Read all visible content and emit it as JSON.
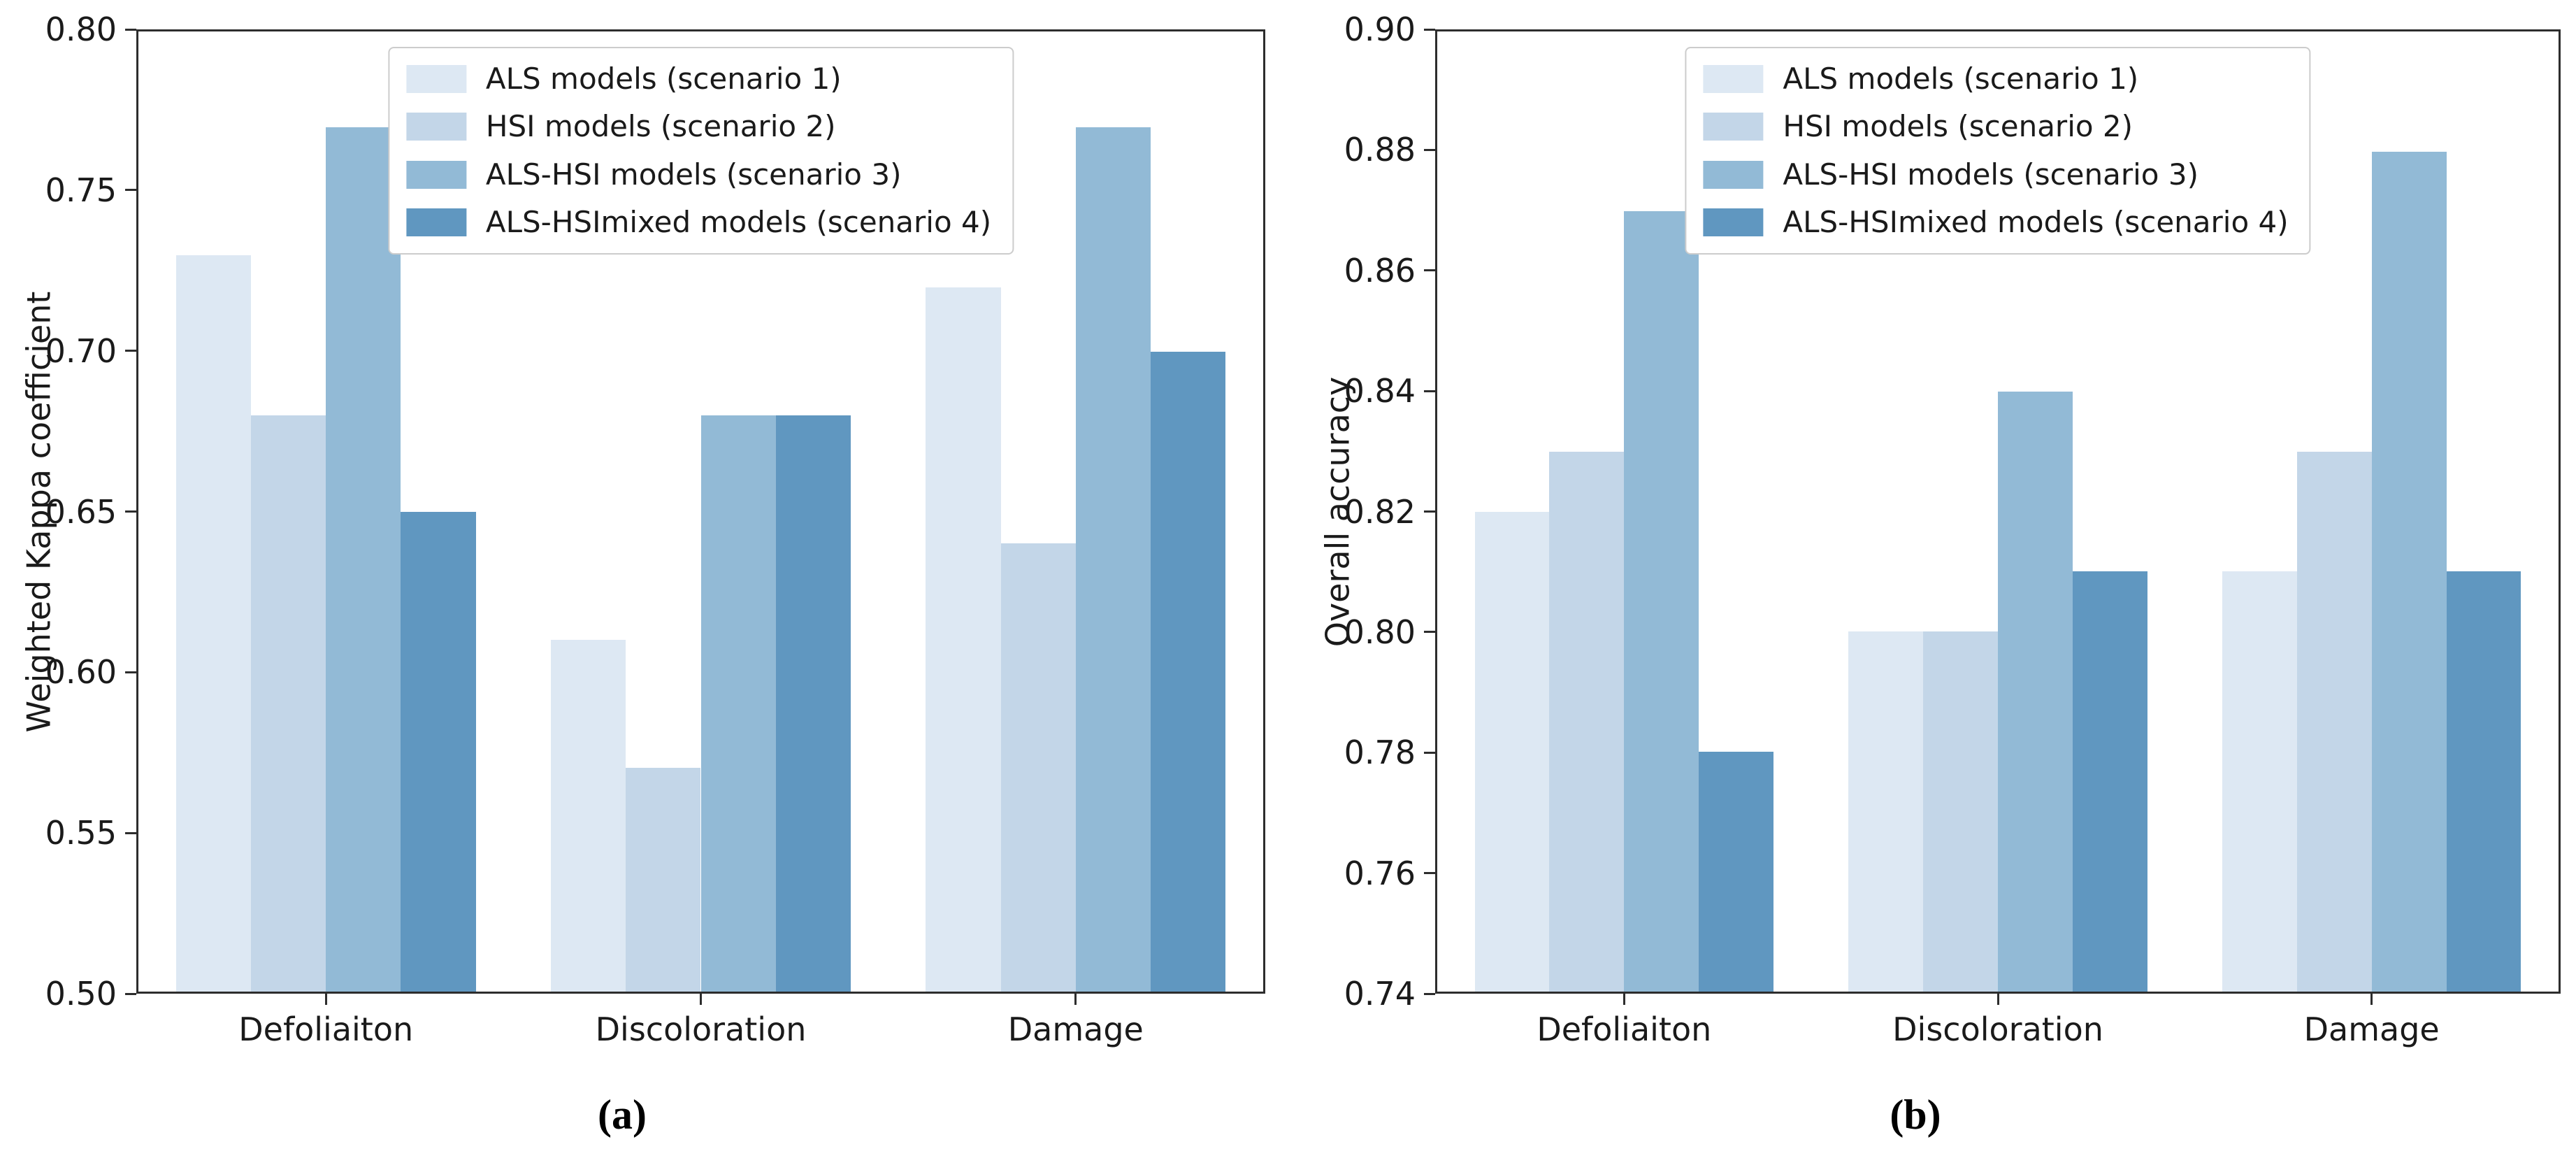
{
  "figure": {
    "background": "#ffffff",
    "axis_color": "#2d2d2d",
    "text_color": "#1a1a1a",
    "series_colors": [
      "#dde8f3",
      "#c3d6e8",
      "#92bad6",
      "#6097c0"
    ],
    "legend_border_color": "#cccccc"
  },
  "chart_data": [
    {
      "type": "bar",
      "panel_label": "(a)",
      "title": "",
      "xlabel": "",
      "ylabel": "Weighted Kappa coefficient",
      "categories": [
        "Defoliaiton",
        "Discoloration",
        "Damage"
      ],
      "series": [
        {
          "name": "ALS models (scenario 1)",
          "values": [
            0.73,
            0.61,
            0.72
          ]
        },
        {
          "name": "HSI models (scenario 2)",
          "values": [
            0.68,
            0.57,
            0.64
          ]
        },
        {
          "name": "ALS-HSI models (scenario 3)",
          "values": [
            0.77,
            0.68,
            0.77
          ]
        },
        {
          "name": "ALS-HSImixed models (scenario 4)",
          "values": [
            0.65,
            0.68,
            0.7
          ]
        }
      ],
      "ylim": [
        0.5,
        0.8
      ],
      "yticks": [
        0.5,
        0.55,
        0.6,
        0.65,
        0.7,
        0.75,
        0.8
      ],
      "ytick_labels": [
        "0.50",
        "0.55",
        "0.60",
        "0.65",
        "0.70",
        "0.75",
        "0.80"
      ],
      "legend_position": "upper center",
      "grid": false,
      "bar_group_width_fraction": 0.8
    },
    {
      "type": "bar",
      "panel_label": "(b)",
      "title": "",
      "xlabel": "",
      "ylabel": "Overall accuracy",
      "categories": [
        "Defoliaiton",
        "Discoloration",
        "Damage"
      ],
      "series": [
        {
          "name": "ALS models (scenario 1)",
          "values": [
            0.82,
            0.8,
            0.81
          ]
        },
        {
          "name": "HSI models (scenario 2)",
          "values": [
            0.83,
            0.8,
            0.83
          ]
        },
        {
          "name": "ALS-HSI models (scenario 3)",
          "values": [
            0.87,
            0.84,
            0.88
          ]
        },
        {
          "name": "ALS-HSImixed models (scenario 4)",
          "values": [
            0.78,
            0.81,
            0.81
          ]
        }
      ],
      "ylim": [
        0.74,
        0.9
      ],
      "yticks": [
        0.74,
        0.76,
        0.78,
        0.8,
        0.82,
        0.84,
        0.86,
        0.88,
        0.9
      ],
      "ytick_labels": [
        "0.74",
        "0.76",
        "0.78",
        "0.80",
        "0.82",
        "0.84",
        "0.86",
        "0.88",
        "0.90"
      ],
      "legend_position": "upper center",
      "grid": false,
      "bar_group_width_fraction": 0.8
    }
  ]
}
